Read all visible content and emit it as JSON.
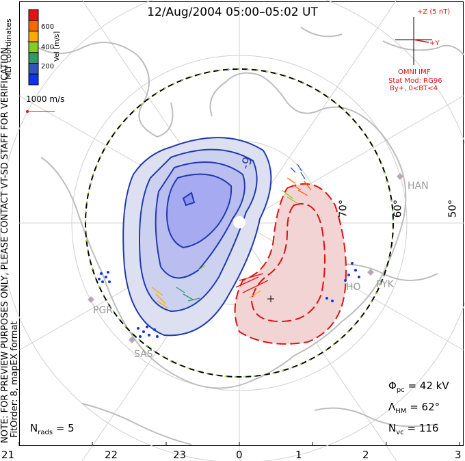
{
  "title": "12/Aug/2004 05:00–05:02 UT",
  "colorbar": {
    "label": "Vel [m/s]",
    "ticks": [
      "600",
      "400",
      "200"
    ],
    "colors": [
      "#e81010",
      "#ff6600",
      "#ffaa00",
      "#88cc22",
      "#339966",
      "#3355bb",
      "#1133ee"
    ]
  },
  "scale_arrow_label": "1000 m/s",
  "left_notes": {
    "mlt_coords": "MLT coordinates",
    "note": "NOTE: FOR PREVIEW PURPOSES ONLY, PLEASE CONTACT VT-SD STAFF FOR VERIFICATION.",
    "fitorder": "FitOrder: 8, mapEX format"
  },
  "imf": {
    "z_label": "+Z (5 nT)",
    "y_label": "+Y",
    "source": "OMNI IMF",
    "model": "Stat Mod: RG96",
    "condition": "By+, 0<BT<4"
  },
  "contour_label": "-9",
  "latitude_labels": [
    "70°",
    "60°",
    "50°"
  ],
  "radars": [
    "HAN",
    "PYK",
    "HO",
    "PGR",
    "SAS"
  ],
  "stats": {
    "phi_symbol": "Φ",
    "phi_sub": "pc",
    "phi_value": "= 42 kV",
    "lambda_symbol": "Λ",
    "lambda_sub": "HM",
    "lambda_value": "= 62°",
    "nvc_symbol": "N",
    "nvc_sub": "vc",
    "nvc_value": "= 116",
    "nrads_symbol": "N",
    "nrads_sub": "rads",
    "nrads_value": "= 5"
  },
  "mlt_ticks": [
    "21",
    "22",
    "23",
    "0",
    "1",
    "2",
    "3"
  ]
}
